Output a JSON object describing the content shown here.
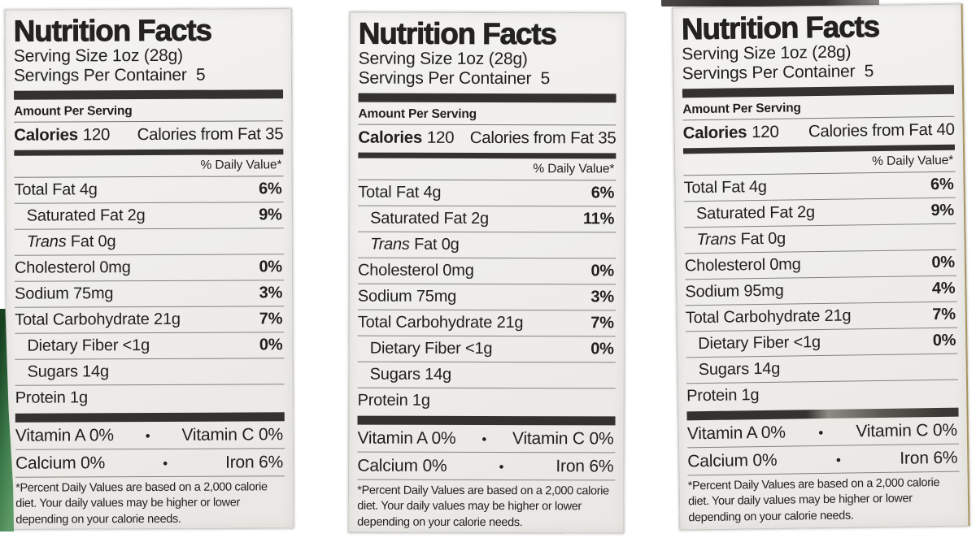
{
  "colors": {
    "page_background": "#ffffff",
    "label_background": "#efeeec",
    "text": "#201f1d",
    "divider_bar": "#343230",
    "bag_edge_green": "#3d7a4a"
  },
  "labels": [
    {
      "title": "Nutrition Facts",
      "serving_size": "Serving Size 1oz (28g)",
      "servings_per_container": "Servings Per Container  5",
      "amount_per_serving": "Amount Per Serving",
      "calories_label": "Calories",
      "calories_value": "120",
      "calories_from_fat": "Calories from Fat 35",
      "daily_value_header": "% Daily Value*",
      "rows": [
        {
          "name": "Total Fat 4g",
          "value": "6%"
        },
        {
          "name": "Saturated Fat 2g",
          "value": "9%"
        },
        {
          "italic": "Trans",
          "name": " Fat 0g",
          "value": ""
        },
        {
          "name": "Cholesterol 0mg",
          "value": "0%"
        },
        {
          "name": "Sodium 75mg",
          "value": "3%"
        },
        {
          "name": "Total Carbohydrate 21g",
          "value": "7%"
        },
        {
          "name": "Dietary Fiber <1g",
          "value": "0%"
        },
        {
          "name": "Sugars 14g",
          "value": ""
        },
        {
          "name": "Protein 1g",
          "value": ""
        }
      ],
      "vitamin_rows": [
        {
          "left": "Vitamin A 0%",
          "bullet": "•",
          "right": "Vitamin C 0%"
        },
        {
          "left": "Calcium 0%",
          "bullet": "•",
          "right": "Iron 6%"
        }
      ],
      "footnote": "*Percent Daily Values are based on a 2,000 calorie diet. Your daily values may be higher or lower depending on your calorie needs."
    },
    {
      "title": "Nutrition Facts",
      "serving_size": "Serving Size 1oz (28g)",
      "servings_per_container": "Servings Per Container  5",
      "amount_per_serving": "Amount Per Serving",
      "calories_label": "Calories",
      "calories_value": "120",
      "calories_from_fat": "Calories from Fat 35",
      "daily_value_header": "% Daily Value*",
      "rows": [
        {
          "name": "Total Fat 4g",
          "value": "6%"
        },
        {
          "name": "Saturated Fat 2g",
          "value": "11%"
        },
        {
          "italic": "Trans",
          "name": " Fat 0g",
          "value": ""
        },
        {
          "name": "Cholesterol 0mg",
          "value": "0%"
        },
        {
          "name": "Sodium 75mg",
          "value": "3%"
        },
        {
          "name": "Total Carbohydrate 21g",
          "value": "7%"
        },
        {
          "name": "Dietary Fiber <1g",
          "value": "0%"
        },
        {
          "name": "Sugars 14g",
          "value": ""
        },
        {
          "name": "Protein 1g",
          "value": ""
        }
      ],
      "vitamin_rows": [
        {
          "left": "Vitamin A 0%",
          "bullet": "•",
          "right": "Vitamin C 0%"
        },
        {
          "left": "Calcium 0%",
          "bullet": "•",
          "right": "Iron 6%"
        }
      ],
      "footnote": "*Percent Daily Values are based on a 2,000 calorie diet. Your daily values may be higher or lower depending on your calorie needs."
    },
    {
      "title": "Nutrition Facts",
      "serving_size": "Serving Size 1oz (28g)",
      "servings_per_container": "Servings Per Container  5",
      "amount_per_serving": "Amount Per Serving",
      "calories_label": "Calories",
      "calories_value": "120",
      "calories_from_fat": "Calories from Fat 40",
      "daily_value_header": "% Daily Value*",
      "rows": [
        {
          "name": "Total Fat 4g",
          "value": "6%"
        },
        {
          "name": "Saturated Fat 2g",
          "value": "9%"
        },
        {
          "italic": "Trans",
          "name": " Fat 0g",
          "value": ""
        },
        {
          "name": "Cholesterol 0mg",
          "value": "0%"
        },
        {
          "name": "Sodium 95mg",
          "value": "4%"
        },
        {
          "name": "Total Carbohydrate 21g",
          "value": "7%"
        },
        {
          "name": "Dietary Fiber <1g",
          "value": "0%"
        },
        {
          "name": "Sugars 14g",
          "value": ""
        },
        {
          "name": "Protein 1g",
          "value": ""
        }
      ],
      "vitamin_rows": [
        {
          "left": "Vitamin A 0%",
          "bullet": "•",
          "right": "Vitamin C 0%"
        },
        {
          "left": "Calcium 0%",
          "bullet": "•",
          "right": "Iron 6%"
        }
      ],
      "footnote": "*Percent Daily Values are based on a 2,000 calorie diet. Your daily values may be higher or lower depending on your calorie needs."
    }
  ]
}
